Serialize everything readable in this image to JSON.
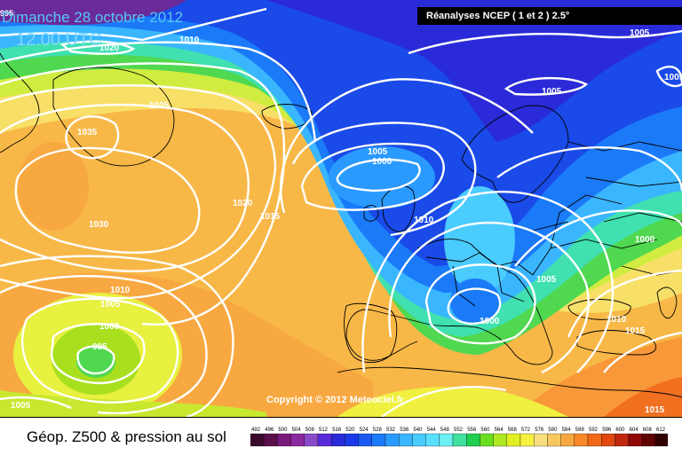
{
  "header": {
    "date_label": "Dimanche 28 octobre 2012",
    "time_label": "12.00 UTC",
    "source_label": "Réanalyses NCEP ( 1 et 2 ) 2.5°",
    "corner_value": "995"
  },
  "copyright": "Copyright © 2012 Meteociel.fr",
  "footer": {
    "label": "Géop. Z500 & pression au sol"
  },
  "isobar_labels": [
    "1020",
    "1010",
    "1005",
    "1005",
    "1005",
    "1035",
    "1025",
    "1020",
    "1030",
    "1015",
    "1005",
    "1000",
    "1010",
    "1010",
    "1005",
    "1000",
    "995",
    "1005",
    "1000",
    "1005",
    "1010",
    "1015",
    "1000",
    "1015"
  ],
  "legend": {
    "ticks": [
      "492",
      "496",
      "500",
      "504",
      "508",
      "512",
      "516",
      "520",
      "524",
      "528",
      "532",
      "536",
      "540",
      "544",
      "548",
      "552",
      "556",
      "560",
      "564",
      "568",
      "572",
      "576",
      "580",
      "584",
      "588",
      "592",
      "596",
      "600",
      "604",
      "608",
      "612"
    ],
    "colors": [
      "#3a0a2a",
      "#5a0f4a",
      "#7a1a7a",
      "#8a2aa0",
      "#8a4ac8",
      "#5a2ad8",
      "#2a2ad8",
      "#1a3ae8",
      "#1a5af0",
      "#1a7af8",
      "#2a9aff",
      "#3ab6ff",
      "#4accff",
      "#5ae0ff",
      "#6af0f0",
      "#40e0a0",
      "#20d050",
      "#6ade20",
      "#b0e820",
      "#e0f020",
      "#f8f040",
      "#f8e080",
      "#f8c860",
      "#f8a840",
      "#f88828",
      "#f06818",
      "#e04810",
      "#c02810",
      "#900808",
      "#600404",
      "#300000"
    ]
  },
  "colors": {
    "deep_blue": "#1e2ec8",
    "blue": "#1a5af0",
    "cyan": "#3ab6ff",
    "green": "#40d060",
    "yellow": "#f0f040",
    "orange": "#f8b848",
    "red": "#f06818",
    "purple": "#6a2a9a",
    "land_outline": "#000000",
    "isobar": "#ffffff"
  }
}
